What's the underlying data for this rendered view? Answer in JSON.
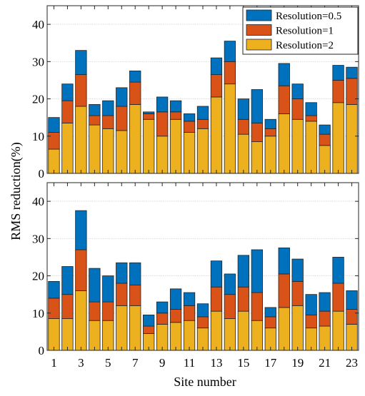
{
  "chart_data": [
    {
      "type": "bar",
      "stacked": true,
      "categories": [
        "1",
        "2",
        "3",
        "4",
        "5",
        "6",
        "7",
        "8",
        "9",
        "10",
        "11",
        "12",
        "13",
        "14",
        "15",
        "16",
        "17",
        "18",
        "19",
        "20",
        "21",
        "22",
        "23"
      ],
      "xticks": [
        "1",
        "3",
        "5",
        "7",
        "9",
        "11",
        "13",
        "15",
        "17",
        "19",
        "21",
        "23"
      ],
      "xlabel": "",
      "ylabel": "",
      "ylim": [
        0,
        45
      ],
      "yticks": [
        0,
        10,
        20,
        30,
        40
      ],
      "grid": true,
      "legend_position": "top-right",
      "series": [
        {
          "name": "Resolution=2",
          "color": "#EDB120",
          "values": [
            6.5,
            13.5,
            18.0,
            13.0,
            12.0,
            11.5,
            18.5,
            14.5,
            10.0,
            14.5,
            11.0,
            12.0,
            20.5,
            24.0,
            10.5,
            8.5,
            10.0,
            16.0,
            14.5,
            14.0,
            7.5,
            19.0,
            18.5
          ]
        },
        {
          "name": "Resolution=1",
          "color": "#D95319",
          "values": [
            4.5,
            6.0,
            8.5,
            2.5,
            3.5,
            6.5,
            6.0,
            1.5,
            6.5,
            2.0,
            3.0,
            2.5,
            6.0,
            6.0,
            4.0,
            5.0,
            2.0,
            7.5,
            5.5,
            1.5,
            3.0,
            6.0,
            7.0
          ]
        },
        {
          "name": "Resolution=0.5",
          "color": "#0072BD",
          "values": [
            4.0,
            4.5,
            6.5,
            3.0,
            4.0,
            5.0,
            3.0,
            0.5,
            4.0,
            3.0,
            2.0,
            3.5,
            4.5,
            5.5,
            5.5,
            9.0,
            2.5,
            6.0,
            4.0,
            3.5,
            2.5,
            4.0,
            3.0
          ]
        }
      ]
    },
    {
      "type": "bar",
      "stacked": true,
      "categories": [
        "1",
        "2",
        "3",
        "4",
        "5",
        "6",
        "7",
        "8",
        "9",
        "10",
        "11",
        "12",
        "13",
        "14",
        "15",
        "16",
        "17",
        "18",
        "19",
        "20",
        "21",
        "22",
        "23"
      ],
      "xticks": [
        "1",
        "3",
        "5",
        "7",
        "9",
        "11",
        "13",
        "15",
        "17",
        "19",
        "21",
        "23"
      ],
      "xlabel": "Site number",
      "ylabel": "RMS reduction(%)",
      "ylim": [
        0,
        45
      ],
      "yticks": [
        0,
        10,
        20,
        30,
        40
      ],
      "grid": true,
      "series": [
        {
          "name": "Resolution=2",
          "color": "#EDB120",
          "values": [
            8.5,
            8.5,
            16.0,
            8.0,
            8.0,
            12.0,
            12.0,
            4.5,
            7.0,
            7.5,
            8.0,
            6.0,
            10.5,
            8.5,
            10.5,
            8.0,
            6.0,
            11.5,
            12.0,
            6.0,
            6.5,
            10.5,
            7.0
          ]
        },
        {
          "name": "Resolution=1",
          "color": "#D95319",
          "values": [
            5.5,
            6.5,
            11.0,
            5.0,
            5.0,
            6.0,
            5.5,
            2.0,
            3.0,
            3.5,
            4.0,
            3.0,
            6.5,
            6.5,
            6.5,
            7.5,
            3.0,
            9.0,
            6.5,
            3.5,
            4.0,
            7.5,
            4.0
          ]
        },
        {
          "name": "Resolution=0.5",
          "color": "#0072BD",
          "values": [
            4.5,
            7.5,
            10.5,
            9.0,
            7.0,
            5.5,
            6.0,
            3.0,
            3.0,
            5.5,
            3.5,
            3.5,
            7.0,
            5.5,
            8.5,
            11.5,
            2.5,
            7.0,
            6.0,
            5.5,
            5.0,
            7.0,
            5.0
          ]
        }
      ]
    }
  ]
}
